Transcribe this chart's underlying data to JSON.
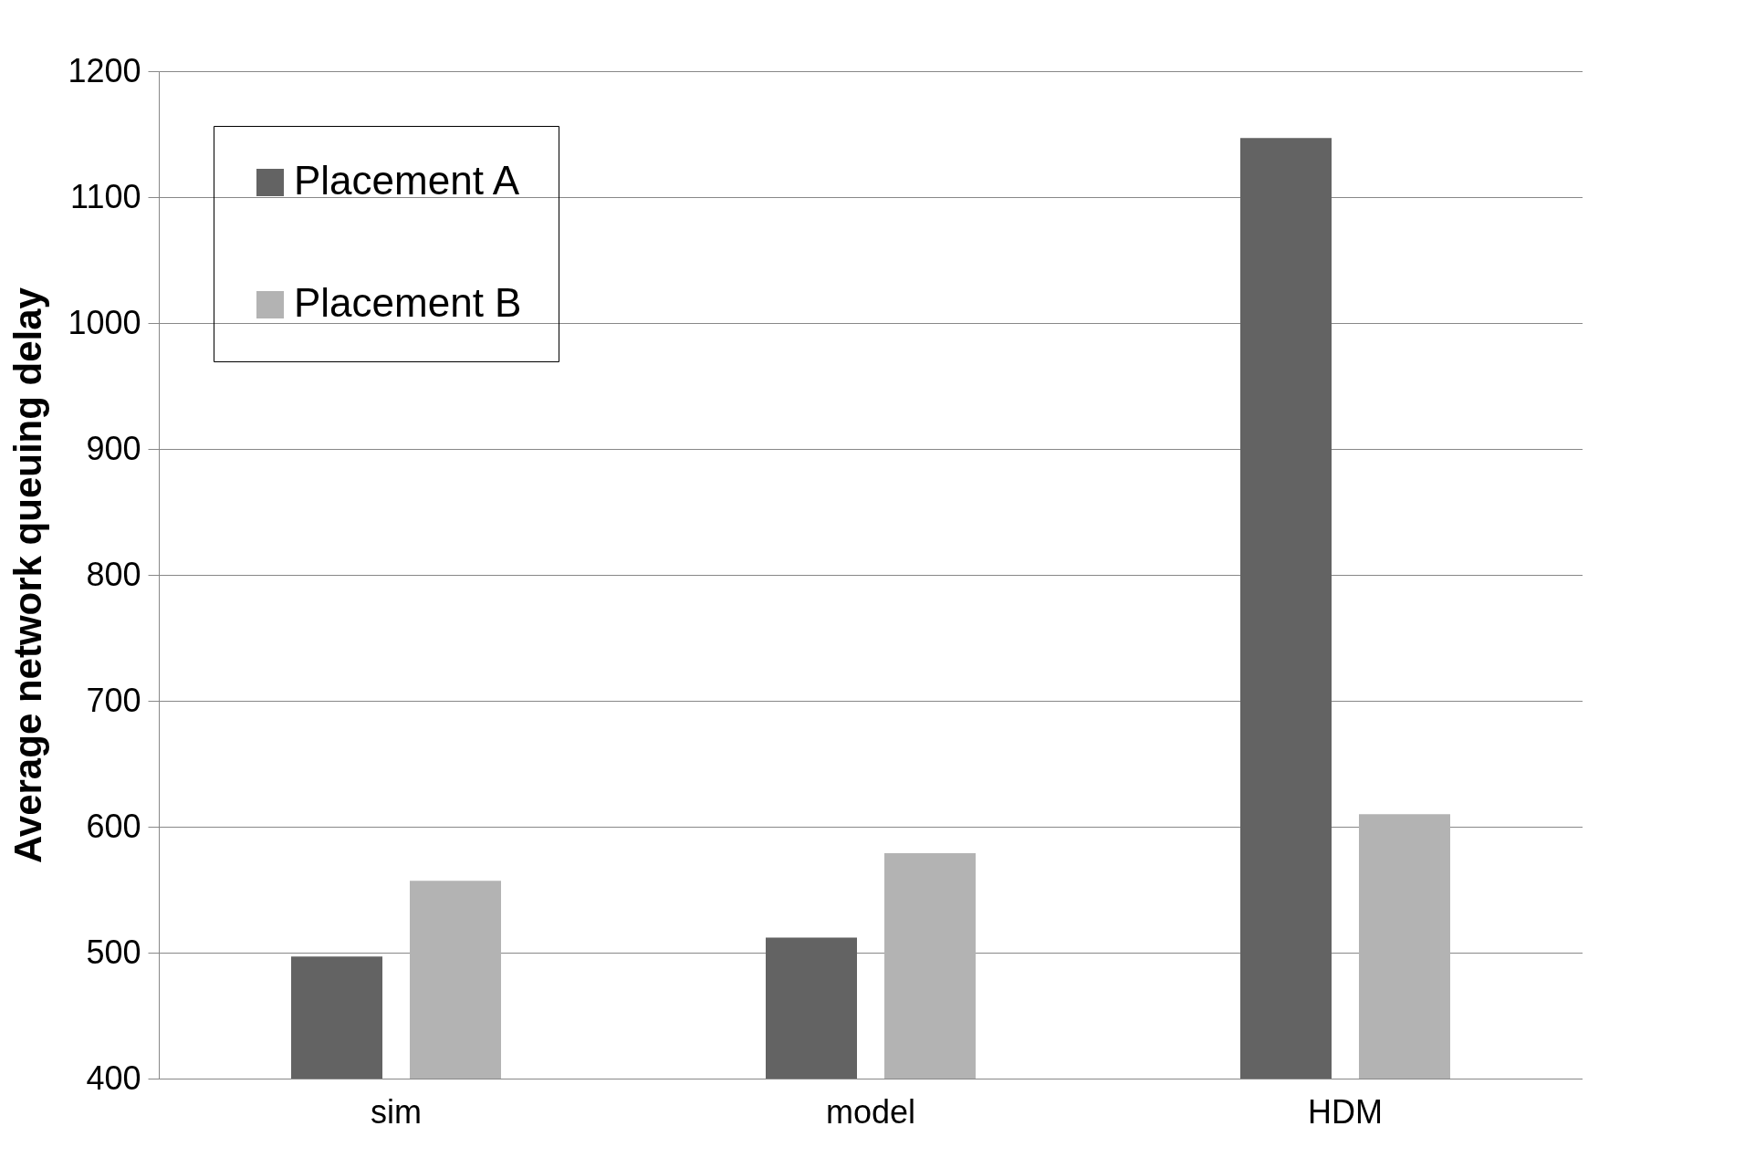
{
  "chart_data": {
    "type": "bar",
    "ylabel": "Average network queuing delay",
    "categories": [
      "sim",
      "model",
      "HDM"
    ],
    "series": [
      {
        "name": "Placement A",
        "color": "#636363",
        "values": [
          497,
          512,
          1147
        ]
      },
      {
        "name": "Placement B",
        "color": "#b3b3b3",
        "values": [
          557,
          579,
          610
        ]
      }
    ],
    "ylim": [
      400,
      1200
    ],
    "yticks": [
      400,
      500,
      600,
      700,
      800,
      900,
      1000,
      1100,
      1200
    ],
    "grid": "y",
    "legend": "top left"
  }
}
